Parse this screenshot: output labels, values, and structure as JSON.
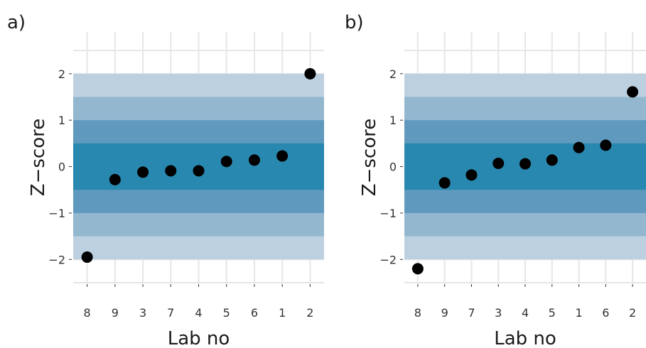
{
  "colors": {
    "band_2": "#bdd0e0",
    "band_15": "#94b7d0",
    "band_1": "#5f99bd",
    "band_05": "#2988b0",
    "point": "#000000",
    "grid": "#e6e6e6"
  },
  "chart_data": [
    {
      "type": "scatter",
      "panel_label": "a)",
      "xlabel": "Lab no",
      "ylabel": "Z−score",
      "categories": [
        "8",
        "9",
        "3",
        "7",
        "4",
        "5",
        "6",
        "1",
        "2"
      ],
      "values": [
        -1.95,
        -0.28,
        -0.12,
        -0.09,
        -0.09,
        0.11,
        0.14,
        0.23,
        2.0
      ],
      "ylim": [
        -2.5,
        2.9
      ],
      "yticks": [
        -2,
        -1,
        0,
        1,
        2
      ],
      "ytick_labels": [
        "−2",
        "−1",
        "0",
        "1",
        "2"
      ],
      "bands": [
        2,
        1.5,
        1,
        0.5
      ],
      "grid": true
    },
    {
      "type": "scatter",
      "panel_label": "b)",
      "xlabel": "Lab no",
      "ylabel": "Z−score",
      "categories": [
        "8",
        "9",
        "7",
        "3",
        "4",
        "5",
        "1",
        "6",
        "2"
      ],
      "values": [
        -2.2,
        -0.35,
        -0.18,
        0.07,
        0.06,
        0.14,
        0.41,
        0.46,
        1.61
      ],
      "ylim": [
        -2.5,
        2.9
      ],
      "yticks": [
        -2,
        -1,
        0,
        1,
        2
      ],
      "ytick_labels": [
        "−2",
        "−1",
        "0",
        "1",
        "2"
      ],
      "bands": [
        2,
        1.5,
        1,
        0.5
      ],
      "grid": true
    }
  ]
}
